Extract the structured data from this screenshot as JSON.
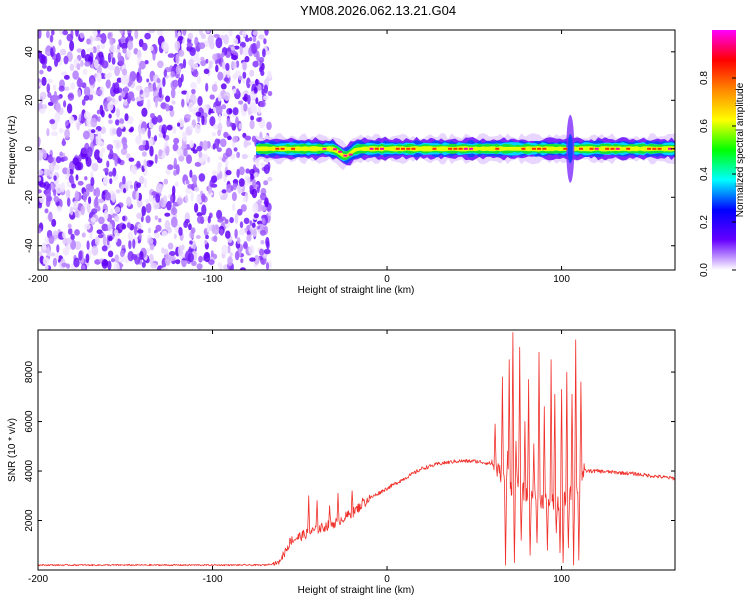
{
  "title": "YM08.2026.062.13.21.G04",
  "colors": {
    "snr_line": "#f0302a",
    "spec_background": "#ffffff",
    "frame": "#000000"
  },
  "chart_data": [
    {
      "type": "heatmap",
      "name": "spectrogram",
      "xlabel": "Height of straight line (km)",
      "ylabel": "Frequency (Hz)",
      "xlim": [
        -200,
        165
      ],
      "ylim": [
        -50,
        49
      ],
      "xticks": [
        {
          "value": -200,
          "label": "-200"
        },
        {
          "value": -100,
          "label": "-100"
        },
        {
          "value": 0,
          "label": "0"
        },
        {
          "value": 100,
          "label": "100"
        }
      ],
      "yticks": [
        {
          "value": 40,
          "label": "40"
        },
        {
          "value": 20,
          "label": "20"
        },
        {
          "value": 0,
          "label": "0"
        },
        {
          "value": -20,
          "label": "-20"
        },
        {
          "value": -40,
          "label": "-40"
        }
      ],
      "noise_region_km": [
        -200,
        -67
      ],
      "signal_band": {
        "center_hz": 0,
        "start_km": -75,
        "end_km": 165,
        "core_halfwidth_hz": 1.5,
        "outer_halfwidth_hz": 4,
        "dip_at_km": -24,
        "dip_depth_hz": -3,
        "burst_at_km": 105,
        "burst_extent_hz": [
          -16,
          12
        ]
      },
      "colorbar": {
        "label": "Normalized spectral amplitude",
        "range": [
          0,
          1
        ],
        "ticks": [
          {
            "value": 0.0,
            "label": "0.0"
          },
          {
            "value": 0.2,
            "label": "0.2"
          },
          {
            "value": 0.4,
            "label": "0.4"
          },
          {
            "value": 0.6,
            "label": "0.6"
          },
          {
            "value": 0.8,
            "label": "0.8"
          }
        ],
        "stops": [
          "#ffffff",
          "#6600ff",
          "#0000ff",
          "#00ffff",
          "#00ff00",
          "#ffff00",
          "#ff8800",
          "#ff0000",
          "#ff00ff"
        ]
      }
    },
    {
      "type": "line",
      "name": "snr",
      "xlabel": "Height of straight line (km)",
      "ylabel": "SNR (10 * v/v)",
      "xlim": [
        -200,
        165
      ],
      "ylim": [
        0,
        9700
      ],
      "xticks": [
        {
          "value": -200,
          "label": "-200"
        },
        {
          "value": -100,
          "label": "-100"
        },
        {
          "value": 0,
          "label": "0"
        },
        {
          "value": 100,
          "label": "100"
        }
      ],
      "yticks": [
        {
          "value": 2000,
          "label": "2000"
        },
        {
          "value": 4000,
          "label": "4000"
        },
        {
          "value": 6000,
          "label": "6000"
        },
        {
          "value": 8000,
          "label": "8000"
        }
      ],
      "envelope": {
        "x": [
          -200,
          -70,
          -62,
          -55,
          -45,
          -30,
          -20,
          -10,
          0,
          10,
          20,
          30,
          40,
          50,
          60,
          65,
          70,
          75,
          80,
          90,
          100,
          110,
          113,
          120,
          140,
          165
        ],
        "y": [
          200,
          200,
          300,
          1200,
          1500,
          1900,
          2300,
          2900,
          3300,
          3700,
          4100,
          4300,
          4400,
          4400,
          4300,
          3900,
          3300,
          3500,
          3000,
          2800,
          2700,
          3400,
          4000,
          4000,
          3900,
          3700
        ]
      },
      "spikes": [
        {
          "x": -54,
          "y": 1100
        },
        {
          "x": -45,
          "y": 3000
        },
        {
          "x": -40,
          "y": 2800
        },
        {
          "x": -33,
          "y": 2600
        },
        {
          "x": -28,
          "y": 3100
        },
        {
          "x": -20,
          "y": 3200
        },
        {
          "x": -14,
          "y": 2900
        },
        {
          "x": 62,
          "y": 5900
        },
        {
          "x": 66,
          "y": 7800
        },
        {
          "x": 69,
          "y": 4800
        },
        {
          "x": 70,
          "y": 8500
        },
        {
          "x": 72,
          "y": 9600
        },
        {
          "x": 74,
          "y": 5200
        },
        {
          "x": 76,
          "y": 9000
        },
        {
          "x": 79,
          "y": 6000
        },
        {
          "x": 81,
          "y": 7700
        },
        {
          "x": 84,
          "y": 5100
        },
        {
          "x": 87,
          "y": 8800
        },
        {
          "x": 90,
          "y": 6600
        },
        {
          "x": 94,
          "y": 8500
        },
        {
          "x": 96,
          "y": 7100
        },
        {
          "x": 100,
          "y": 7300
        },
        {
          "x": 103,
          "y": 8000
        },
        {
          "x": 106,
          "y": 7100
        },
        {
          "x": 108,
          "y": 9300
        },
        {
          "x": 111,
          "y": 7600
        }
      ],
      "dips": [
        {
          "x": 68,
          "y": 200
        },
        {
          "x": 73,
          "y": 300
        },
        {
          "x": 77,
          "y": 1200
        },
        {
          "x": 82,
          "y": 600
        },
        {
          "x": 86,
          "y": 1100
        },
        {
          "x": 92,
          "y": 800
        },
        {
          "x": 97,
          "y": 1500
        },
        {
          "x": 99,
          "y": 700
        },
        {
          "x": 101,
          "y": 300
        },
        {
          "x": 104,
          "y": 900
        },
        {
          "x": 107,
          "y": 200
        },
        {
          "x": 110,
          "y": 400
        }
      ]
    }
  ]
}
